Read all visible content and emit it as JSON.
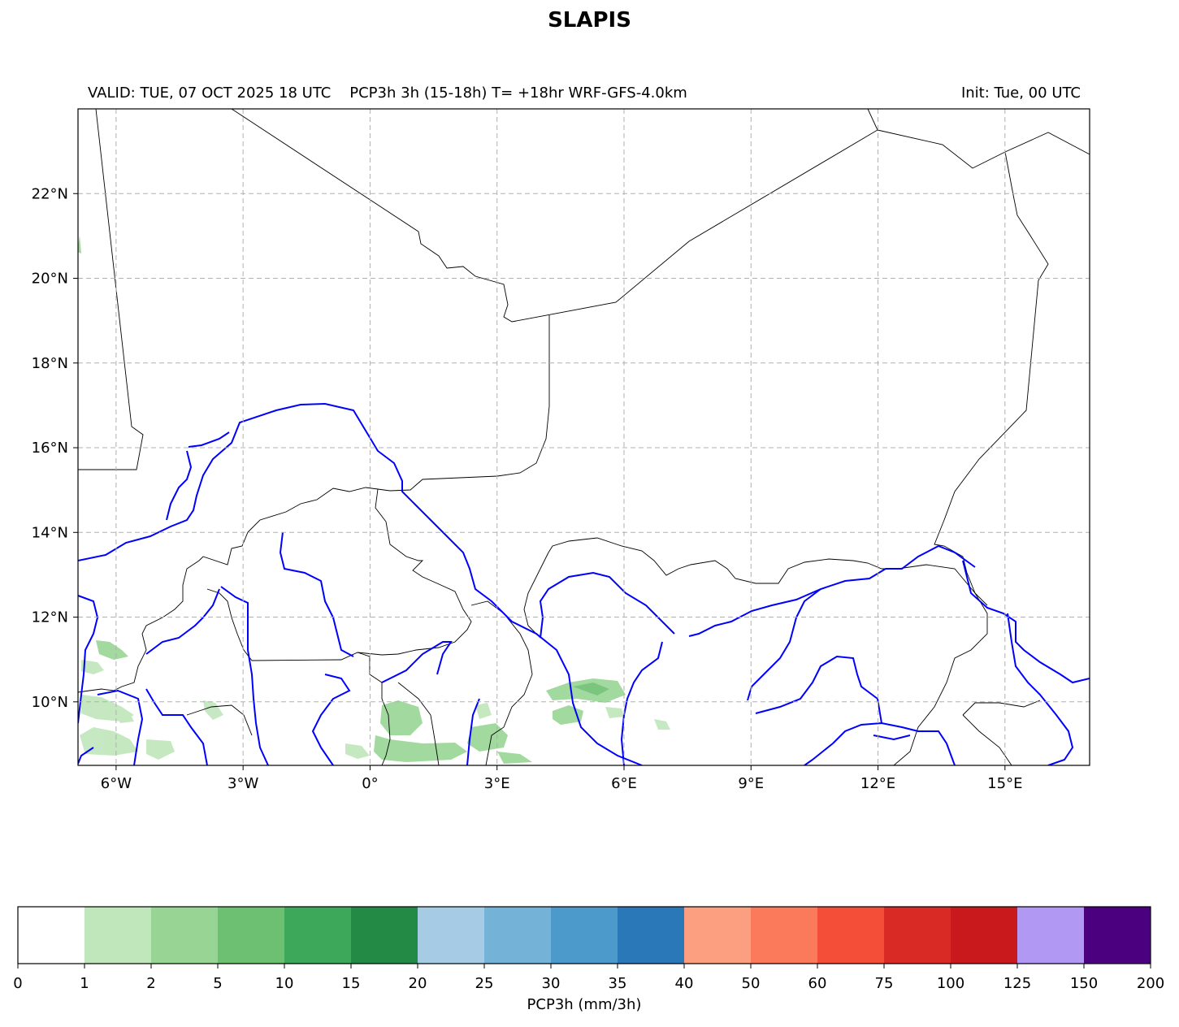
{
  "title": "SLAPIS",
  "subtitle_left": "VALID: TUE, 07 OCT 2025 18 UTC    PCP3h 3h (15-18h) T= +18hr WRF-GFS-4.0km",
  "subtitle_right": "Init: Tue, 00 UTC",
  "map": {
    "lon_range": [
      -6.9,
      17.0
    ],
    "lat_range": [
      8.5,
      24.0
    ],
    "lon_ticks": [
      -6,
      -3,
      0,
      3,
      6,
      9,
      12,
      15
    ],
    "lon_tick_labels": [
      "6°W",
      "3°W",
      "0°",
      "3°E",
      "6°E",
      "9°E",
      "12°E",
      "15°E"
    ],
    "lat_ticks": [
      10,
      12,
      14,
      16,
      18,
      20,
      22
    ],
    "lat_tick_labels": [
      "10°N",
      "12°N",
      "14°N",
      "16°N",
      "18°N",
      "20°N",
      "22°N"
    ],
    "grid": "dashed",
    "border_color": "#000000",
    "river_color": "#0000ff"
  },
  "colorbar": {
    "label": "PCP3h (mm/3h)",
    "bounds": [
      "0",
      "1",
      "2",
      "5",
      "10",
      "15",
      "20",
      "25",
      "30",
      "35",
      "40",
      "50",
      "60",
      "75",
      "100",
      "125",
      "150",
      "200"
    ],
    "colors": [
      "#ffffff",
      "#c0e6bb",
      "#98d594",
      "#6dc072",
      "#3ea85a",
      "#228a45",
      "#a5cce4",
      "#74b3d7",
      "#4c99cb",
      "#2a78b8",
      "#fc9f80",
      "#fb7a5b",
      "#f44d38",
      "#da2a26",
      "#c9191c",
      "#b198f2",
      "#4b007f"
    ]
  },
  "precip_colors": [
    "#c0e6bb",
    "#98d594",
    "#6dc072"
  ]
}
